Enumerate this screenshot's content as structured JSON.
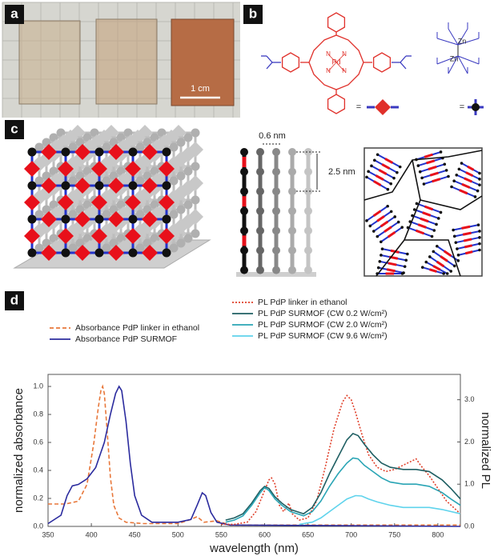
{
  "panels": {
    "a": {
      "label": "a",
      "scale_bar": "1 cm"
    },
    "b": {
      "label": "b",
      "metal": "Pd",
      "nitrogen": "N",
      "zinc": "Zn",
      "equals": "="
    },
    "c": {
      "label": "c",
      "spacing": "0.6 nm",
      "height": "2.5 nm"
    },
    "d": {
      "label": "d"
    }
  },
  "chart_data": {
    "type": "line",
    "xlabel": "wavelength (nm)",
    "ylabel": "normalized absorbance",
    "y2label": "normalized PL",
    "xlim": [
      350,
      826
    ],
    "xticks": [
      350,
      400,
      450,
      500,
      550,
      600,
      650,
      700,
      750,
      800
    ],
    "ylim": [
      0,
      1.086
    ],
    "yticks": [
      {
        "value": 0,
        "label": "0.0"
      },
      {
        "value": 0.2,
        "label": "0.2"
      },
      {
        "value": 0.4,
        "label": "0.4"
      },
      {
        "value": 0.6,
        "label": "0.6"
      },
      {
        "value": 0.8,
        "label": "0.8"
      },
      {
        "value": 1,
        "label": "1.0"
      }
    ],
    "y2lim": [
      0,
      3.6
    ],
    "y2ticks": [
      {
        "value": 0,
        "label": "0.0"
      },
      {
        "value": 1,
        "label": "1.0"
      },
      {
        "value": 2,
        "label": "2.0"
      },
      {
        "value": 3,
        "label": "3.0"
      }
    ],
    "series": [
      {
        "name": "Absorbance PdP linker in ethanol",
        "color": "#e8773a",
        "style": "dashed",
        "axis": "y",
        "x": [
          350,
          370,
          385,
          395,
          403,
          408,
          411,
          413,
          415,
          418,
          422,
          426,
          432,
          440,
          460,
          500,
          515,
          522,
          530,
          545,
          560,
          600,
          700,
          826
        ],
        "values": [
          0.16,
          0.16,
          0.18,
          0.3,
          0.6,
          0.85,
          0.97,
          1.0,
          0.95,
          0.7,
          0.35,
          0.15,
          0.06,
          0.03,
          0.02,
          0.02,
          0.05,
          0.07,
          0.03,
          0.04,
          0.01,
          0.01,
          0.01,
          0.01
        ]
      },
      {
        "name": "Absorbance PdP SURMOF",
        "color": "#2b2b9e",
        "style": "solid",
        "axis": "y",
        "x": [
          350,
          365,
          372,
          378,
          385,
          395,
          405,
          415,
          422,
          428,
          432,
          435,
          440,
          445,
          450,
          458,
          470,
          500,
          515,
          522,
          528,
          532,
          538,
          545,
          560,
          826
        ],
        "values": [
          0.02,
          0.08,
          0.22,
          0.29,
          0.3,
          0.34,
          0.42,
          0.6,
          0.8,
          0.95,
          1.0,
          0.97,
          0.75,
          0.45,
          0.22,
          0.08,
          0.03,
          0.03,
          0.05,
          0.15,
          0.24,
          0.22,
          0.1,
          0.03,
          0.01,
          0.0
        ]
      },
      {
        "name": "PL PdP linker in ethanol",
        "color": "#e0402a",
        "style": "dotted",
        "axis": "y2",
        "x": [
          550,
          565,
          580,
          590,
          600,
          605,
          608,
          612,
          617,
          622,
          628,
          632,
          640,
          650,
          660,
          670,
          680,
          690,
          695,
          700,
          705,
          712,
          720,
          730,
          740,
          750,
          760,
          770,
          775,
          780,
          790,
          800,
          810,
          826
        ],
        "values": [
          0.05,
          0.05,
          0.1,
          0.35,
          0.85,
          1.1,
          1.15,
          1.0,
          0.5,
          0.35,
          0.55,
          0.3,
          0.15,
          0.2,
          0.6,
          1.4,
          2.3,
          2.95,
          3.1,
          3.0,
          2.7,
          2.2,
          1.7,
          1.4,
          1.3,
          1.35,
          1.45,
          1.55,
          1.6,
          1.45,
          1.2,
          0.9,
          0.6,
          0.3
        ]
      },
      {
        "name": "PL PdP SURMOF (CW 0.2 W/cm²)",
        "color": "#1f5f63",
        "style": "solid",
        "axis": "y2",
        "x": [
          555,
          565,
          575,
          585,
          595,
          600,
          605,
          612,
          620,
          630,
          645,
          655,
          665,
          675,
          685,
          695,
          702,
          708,
          715,
          725,
          735,
          745,
          760,
          775,
          790,
          805,
          815,
          826
        ],
        "values": [
          0.15,
          0.2,
          0.3,
          0.55,
          0.85,
          0.95,
          0.9,
          0.7,
          0.55,
          0.4,
          0.3,
          0.45,
          0.8,
          1.25,
          1.65,
          2.05,
          2.2,
          2.15,
          1.95,
          1.7,
          1.5,
          1.4,
          1.35,
          1.35,
          1.3,
          1.1,
          0.9,
          0.65
        ]
      },
      {
        "name": "PL PdP SURMOF (CW 2.0 W/cm²)",
        "color": "#2aa5b5",
        "style": "solid",
        "axis": "y2",
        "x": [
          555,
          565,
          575,
          585,
          595,
          600,
          605,
          612,
          620,
          630,
          645,
          655,
          665,
          675,
          685,
          695,
          702,
          708,
          715,
          725,
          735,
          745,
          760,
          775,
          790,
          805,
          815,
          826
        ],
        "values": [
          0.1,
          0.15,
          0.25,
          0.5,
          0.8,
          0.92,
          0.85,
          0.65,
          0.5,
          0.35,
          0.25,
          0.35,
          0.6,
          0.95,
          1.25,
          1.5,
          1.62,
          1.6,
          1.45,
          1.3,
          1.15,
          1.05,
          1.0,
          1.0,
          0.95,
          0.8,
          0.65,
          0.5
        ]
      },
      {
        "name": "PL PdP SURMOF (CW 9.6 W/cm²)",
        "color": "#5fd3ec",
        "style": "solid",
        "axis": "y2",
        "x": [
          640,
          655,
          665,
          675,
          685,
          695,
          705,
          712,
          720,
          730,
          745,
          760,
          775,
          790,
          805,
          826
        ],
        "values": [
          0.05,
          0.1,
          0.2,
          0.35,
          0.5,
          0.65,
          0.73,
          0.72,
          0.65,
          0.58,
          0.5,
          0.45,
          0.45,
          0.45,
          0.4,
          0.3
        ]
      }
    ]
  }
}
